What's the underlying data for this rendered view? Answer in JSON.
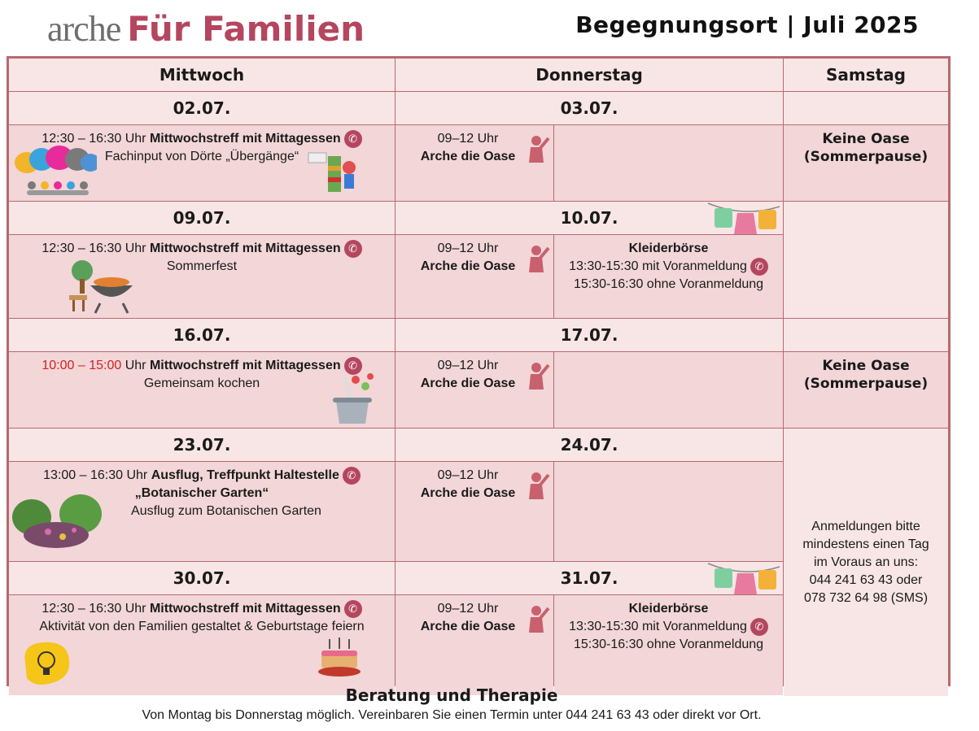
{
  "logo": {
    "brand": "arche",
    "subtitle": "Für Familien"
  },
  "header": {
    "title": "Begegnungsort | Juli 2025"
  },
  "columns": {
    "wed": "Mittwoch",
    "thu": "Donnerstag",
    "sat": "Samstag"
  },
  "weeks": [
    {
      "wed_date": "02.07.",
      "thu_date": "03.07.",
      "wed": {
        "time": "12:30 – 16:30",
        "unit": "Uhr",
        "title": "Mittwochstreff mit Mittagessen",
        "title2": "",
        "desc": "Fachinput von Dörte „Übergänge“"
      },
      "oase": {
        "time": "09–12 Uhr",
        "name": "Arche die Oase"
      },
      "kb": null
    },
    {
      "wed_date": "09.07.",
      "thu_date": "10.07.",
      "wed": {
        "time": "12:30 – 16:30",
        "unit": "Uhr",
        "title": "Mittwochstreff mit Mittagessen",
        "title2": "",
        "desc": "Sommerfest"
      },
      "oase": {
        "time": "09–12 Uhr",
        "name": "Arche die Oase"
      },
      "kb": {
        "name": "Kleiderbörse",
        "line1": "13:30-15:30 mit Voranmeldung",
        "line2": "15:30-16:30 ohne Voranmeldung"
      }
    },
    {
      "wed_date": "16.07.",
      "thu_date": "17.07.",
      "wed": {
        "time": "10:00 – 15:00",
        "unit": "Uhr",
        "title": "Mittwochstreff mit Mittagessen",
        "title2": "",
        "desc": "Gemeinsam kochen"
      },
      "oase": {
        "time": "09–12 Uhr",
        "name": "Arche die Oase"
      },
      "kb": null
    },
    {
      "wed_date": "23.07.",
      "thu_date": "24.07.",
      "wed": {
        "time": "13:00 – 16:30",
        "unit": "Uhr",
        "title": "Ausflug, Treffpunkt Haltestelle",
        "title2": "„Botanischer Garten“",
        "desc": "Ausflug zum Botanischen Garten"
      },
      "oase": {
        "time": "09–12 Uhr",
        "name": "Arche die Oase"
      },
      "kb": null
    },
    {
      "wed_date": "30.07.",
      "thu_date": "31.07.",
      "wed": {
        "time": "12:30 – 16:30",
        "unit": "Uhr",
        "title": "Mittwochstreff mit Mittagessen",
        "title2": "",
        "desc": "Aktivität von den Familien gestaltet & Geburtstage feiern"
      },
      "oase": {
        "time": "09–12 Uhr",
        "name": "Arche die Oase"
      },
      "kb": {
        "name": "Kleiderbörse",
        "line1": "13:30-15:30 mit Voranmeldung",
        "line2": "15:30-16:30 ohne Voranmeldung"
      }
    }
  ],
  "saturday": {
    "closed_line1": "Keine Oase",
    "closed_line2": "(Sommerpause)",
    "note": [
      "Anmeldungen bitte",
      "mindestens einen Tag",
      "im Voraus an uns:",
      "044 241 63 43 oder",
      "078 732 64 98 (SMS)"
    ]
  },
  "footer": {
    "title": "Beratung und Therapie",
    "text": "Von Montag bis Donnerstag möglich. Vereinbaren Sie einen Termin unter 044 241 63 43 oder direkt vor Ort."
  },
  "icons": {
    "phone": "phone-icon",
    "oase": "person-icon",
    "clothes": "clothesline-icon"
  },
  "colors": {
    "brand": "#b5465f",
    "border": "#b66a6f",
    "cell": "#f2d6d8",
    "header": "#f8e6e6",
    "highlight_time": "#d62020"
  }
}
